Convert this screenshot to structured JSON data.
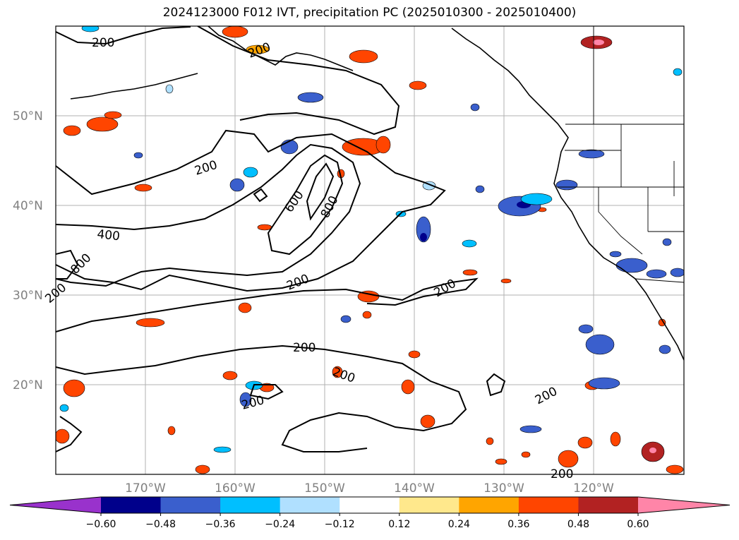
{
  "title": "2024123000 F012 IVT, precipitation PC (2025010300 - 2025010400)",
  "lat_labels": [
    "50°N",
    "40°N",
    "30°N",
    "20°N"
  ],
  "lon_labels": [
    "170°W",
    "160°W",
    "150°W",
    "140°W",
    "130°W",
    "120°W"
  ],
  "ivt_contour_labels": [
    "200",
    "200",
    "200",
    "400",
    "600",
    "800",
    "800",
    "200",
    "200",
    "200",
    "200",
    "200",
    "200",
    "200",
    "200"
  ],
  "colorbar": {
    "ticks": [
      "−0.60",
      "−0.48",
      "−0.36",
      "−0.24",
      "−0.12",
      "0.12",
      "0.24",
      "0.36",
      "0.48",
      "0.60"
    ],
    "colors": [
      "#9932cc",
      "#00008b",
      "#3a5fcd",
      "#00bfff",
      "#b0e0ff",
      "#ffffff",
      "#ffe88c",
      "#ffa500",
      "#ff4500",
      "#b22222",
      "#ff85a8"
    ]
  },
  "chart_data": {
    "type": "map",
    "map_extent": {
      "lon": [
        -180,
        -110
      ],
      "lat": [
        10,
        60
      ]
    },
    "gridlines": true,
    "fields": [
      "IVT contours",
      "precipitation PC shading"
    ],
    "ivt_contour_levels": [
      200,
      400,
      600,
      800
    ],
    "pc_colorbar_levels": [
      -0.6,
      -0.48,
      -0.36,
      -0.24,
      -0.12,
      0.12,
      0.24,
      0.36,
      0.48,
      0.6
    ]
  }
}
